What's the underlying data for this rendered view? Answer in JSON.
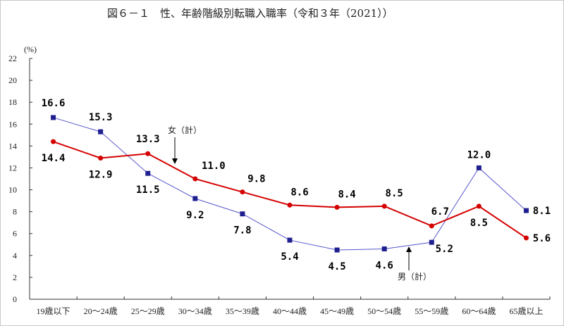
{
  "chart_data": {
    "type": "line",
    "title": "図６－１　性、年齢階級別転職入職率（令和３年（2021））",
    "ylabel": "(%)",
    "xlabel": "",
    "ylim": [
      0,
      22
    ],
    "yticks": [
      0,
      2,
      4,
      6,
      8,
      10,
      12,
      14,
      16,
      18,
      20,
      22
    ],
    "grid": false,
    "categories": [
      "19歳以下",
      "20～24歳",
      "25～29歳",
      "30～34歳",
      "35～39歳",
      "40～44歳",
      "45～49歳",
      "50～54歳",
      "55～59歳",
      "60～64歳",
      "65歳以上"
    ],
    "series": [
      {
        "name": "男（計）",
        "color": "#1f1f8f",
        "marker": "square",
        "values": [
          16.6,
          15.3,
          11.5,
          9.2,
          7.8,
          5.4,
          4.5,
          4.6,
          5.2,
          12.0,
          8.1
        ]
      },
      {
        "name": "女（計）",
        "color": "#d40000",
        "marker": "circle",
        "values": [
          14.4,
          12.9,
          13.3,
          11.0,
          9.8,
          8.6,
          8.4,
          8.5,
          6.7,
          8.5,
          5.6
        ]
      }
    ],
    "annotations": [
      "女（計）",
      "男（計）"
    ]
  }
}
